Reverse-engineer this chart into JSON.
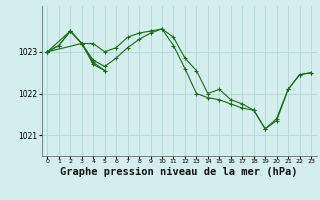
{
  "background_color": "#d4eeed",
  "grid_color": "#b0d8d8",
  "line_color": "#1a6b1a",
  "xlabel": "Graphe pression niveau de la mer (hPa)",
  "xlabel_fontsize": 7.5,
  "yticks": [
    1021,
    1022,
    1023
  ],
  "xticks": [
    0,
    1,
    2,
    3,
    4,
    5,
    6,
    7,
    8,
    9,
    10,
    11,
    12,
    13,
    14,
    15,
    16,
    17,
    18,
    19,
    20,
    21,
    22,
    23
  ],
  "xlim": [
    -0.5,
    23.5
  ],
  "ylim": [
    1020.5,
    1024.1
  ],
  "series": [
    {
      "x": [
        0,
        1,
        2,
        3,
        4,
        5,
        6,
        7,
        8,
        9,
        10,
        11,
        12,
        13,
        14,
        15,
        16,
        17,
        18,
        19,
        20,
        21,
        22,
        23
      ],
      "y": [
        1023.0,
        1023.15,
        1023.5,
        1023.2,
        1023.2,
        1023.0,
        1023.1,
        1023.35,
        1023.45,
        1023.5,
        1023.55,
        1023.35,
        1022.85,
        1022.55,
        1022.0,
        1022.1,
        1021.85,
        1021.75,
        1021.6,
        1021.15,
        1021.4,
        1022.1,
        1022.45,
        1022.5
      ]
    },
    {
      "x": [
        0,
        1,
        2,
        3,
        4,
        5,
        6,
        7,
        8,
        9,
        10,
        11,
        12,
        13,
        14,
        15,
        16,
        17,
        18,
        19,
        20,
        21,
        22,
        23
      ],
      "y": [
        1023.0,
        1023.15,
        1023.5,
        1023.2,
        1022.8,
        1022.65,
        1022.85,
        1023.1,
        1023.3,
        1023.45,
        1023.55,
        1023.15,
        1022.6,
        1022.0,
        1021.9,
        1021.85,
        1021.75,
        1021.65,
        1021.6,
        1021.15,
        1021.35,
        1022.1,
        1022.45,
        1022.5
      ]
    },
    {
      "x": [
        0,
        2,
        3,
        4,
        5
      ],
      "y": [
        1023.0,
        1023.5,
        1023.2,
        1022.75,
        1022.55
      ]
    },
    {
      "x": [
        0,
        3,
        4,
        5
      ],
      "y": [
        1023.0,
        1023.2,
        1022.7,
        1022.55
      ]
    }
  ]
}
